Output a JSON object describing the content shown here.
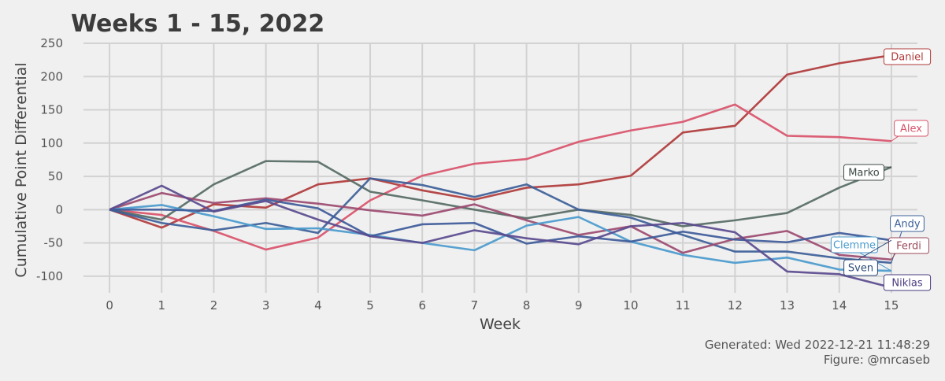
{
  "chart_data": {
    "type": "line",
    "title": "Weeks 1 - 15, 2022",
    "xlabel": "Week",
    "ylabel": "Cumulative Point Differential",
    "xlim": [
      -0.5,
      15.5
    ],
    "ylim": [
      -125,
      250
    ],
    "x_ticks": [
      0,
      1,
      2,
      3,
      4,
      5,
      6,
      7,
      8,
      9,
      10,
      11,
      12,
      13,
      14,
      15
    ],
    "y_ticks": [
      -100,
      -50,
      0,
      50,
      100,
      150,
      200,
      250
    ],
    "x": [
      0,
      1,
      2,
      3,
      4,
      5,
      6,
      7,
      8,
      9,
      10,
      11,
      12,
      13,
      14,
      15
    ],
    "grid": true,
    "series": [
      {
        "name": "Daniel",
        "color": "#b03a3a",
        "values": [
          0,
          -27,
          8,
          3,
          38,
          47,
          29,
          15,
          33,
          38,
          51,
          116,
          126,
          203,
          220,
          232
        ]
      },
      {
        "name": "Alex",
        "color": "#d9536a",
        "values": [
          0,
          -8,
          -32,
          -60,
          -42,
          14,
          51,
          69,
          76,
          102,
          119,
          132,
          158,
          111,
          109,
          103
        ]
      },
      {
        "name": "Marko",
        "color": "#566b64",
        "values": [
          0,
          -15,
          38,
          73,
          72,
          27,
          14,
          0,
          -13,
          0,
          -8,
          -25,
          -16,
          -5,
          33,
          64
        ]
      },
      {
        "name": "Andy",
        "color": "#3d6099",
        "values": [
          0,
          -20,
          -31,
          -20,
          -35,
          47,
          37,
          19,
          38,
          0,
          -12,
          -38,
          -63,
          -63,
          -73,
          -80
        ]
      },
      {
        "name": "Ferdi",
        "color": "#9c4a70",
        "values": [
          0,
          25,
          10,
          17,
          9,
          -1,
          -9,
          8,
          -16,
          -38,
          -25,
          -65,
          -44,
          -32,
          -68,
          -75
        ]
      },
      {
        "name": "Clemme",
        "color": "#4a9acd",
        "values": [
          0,
          7,
          -10,
          -29,
          -28,
          -38,
          -50,
          -61,
          -24,
          -11,
          -48,
          -68,
          -80,
          -72,
          -90,
          -92
        ]
      },
      {
        "name": "Sven",
        "color": "#3d5a9a",
        "values": [
          0,
          0,
          -2,
          15,
          2,
          -40,
          -22,
          -20,
          -51,
          -40,
          -48,
          -33,
          -45,
          -49,
          -35,
          -46
        ]
      },
      {
        "name": "Niklas",
        "color": "#5a4a8e",
        "values": [
          0,
          36,
          -3,
          13,
          -15,
          -40,
          -50,
          -31,
          -43,
          -52,
          -25,
          -20,
          -34,
          -93,
          -97,
          -117
        ]
      }
    ]
  },
  "labels": [
    {
      "name": "Daniel",
      "text": "Daniel",
      "color": "#b03a3a"
    },
    {
      "name": "Alex",
      "text": "Alex",
      "color": "#d9536a"
    },
    {
      "name": "Marko",
      "text": "Marko",
      "color": "#3c4a44"
    },
    {
      "name": "Andy",
      "text": "Andy",
      "color": "#3d6099"
    },
    {
      "name": "Ferdi",
      "text": "Ferdi",
      "color": "#9c4a5a"
    },
    {
      "name": "Clemme",
      "text": "Clemme",
      "color": "#4a9acd"
    },
    {
      "name": "Sven",
      "text": "Sven",
      "color": "#2d4a7a"
    },
    {
      "name": "Niklas",
      "text": "Niklas",
      "color": "#4a3a7e"
    }
  ],
  "footer": {
    "generated": "Generated: Wed 2022-12-21 11:48:29",
    "figure": "Figure: @mrcaseb"
  }
}
